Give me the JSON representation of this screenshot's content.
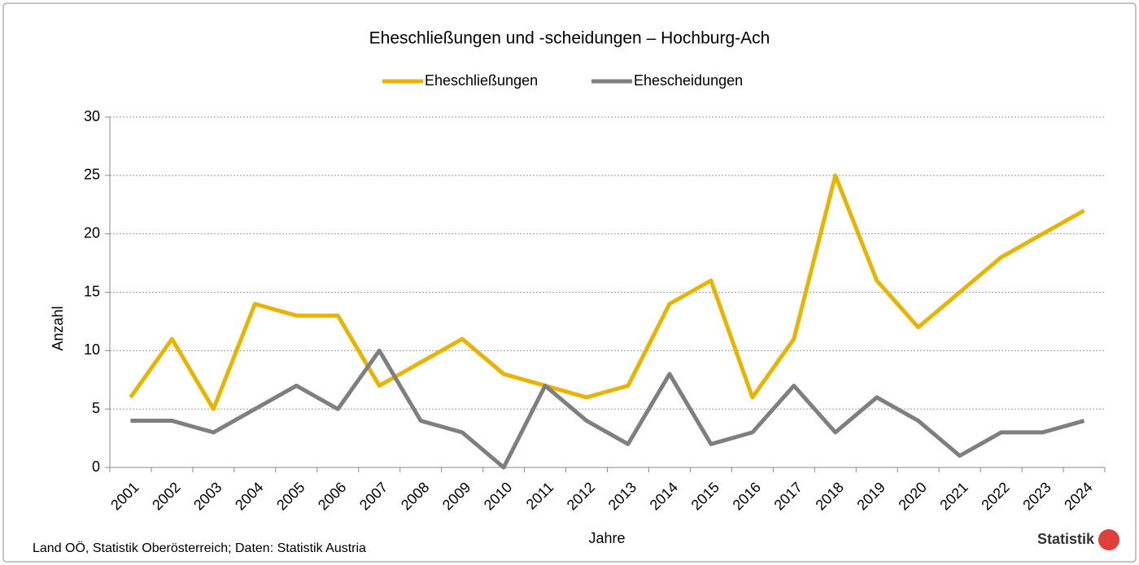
{
  "chart_data": {
    "type": "line",
    "title": "Eheschließungen und -scheidungen – Hochburg-Ach",
    "categories": [
      "2001",
      "2002",
      "2003",
      "2004",
      "2005",
      "2006",
      "2007",
      "2008",
      "2009",
      "2010",
      "2011",
      "2012",
      "2013",
      "2014",
      "2015",
      "2016",
      "2017",
      "2018",
      "2019",
      "2020",
      "2021",
      "2022",
      "2023",
      "2024"
    ],
    "series": [
      {
        "name": "Eheschließungen",
        "color": "#e8b400",
        "values": [
          6,
          11,
          5,
          14,
          13,
          13,
          7,
          9,
          11,
          8,
          7,
          6,
          7,
          14,
          16,
          6,
          11,
          25,
          16,
          12,
          15,
          18,
          20,
          22
        ]
      },
      {
        "name": "Ehescheidungen",
        "color": "#7f7f7f",
        "values": [
          4,
          4,
          3,
          5,
          7,
          5,
          10,
          4,
          3,
          0,
          7,
          4,
          2,
          8,
          2,
          3,
          7,
          3,
          6,
          4,
          1,
          3,
          3,
          4
        ]
      }
    ],
    "ylim": [
      0,
      30
    ],
    "yticks": [
      0,
      5,
      10,
      15,
      20,
      25,
      30
    ],
    "grid": true,
    "ylabel": "Anzahl",
    "xlabel": "Jahre",
    "legend": "top",
    "source": "Land OÖ, Statistik Oberösterreich; Daten: Statistik Austria",
    "logo": "Statistik"
  }
}
